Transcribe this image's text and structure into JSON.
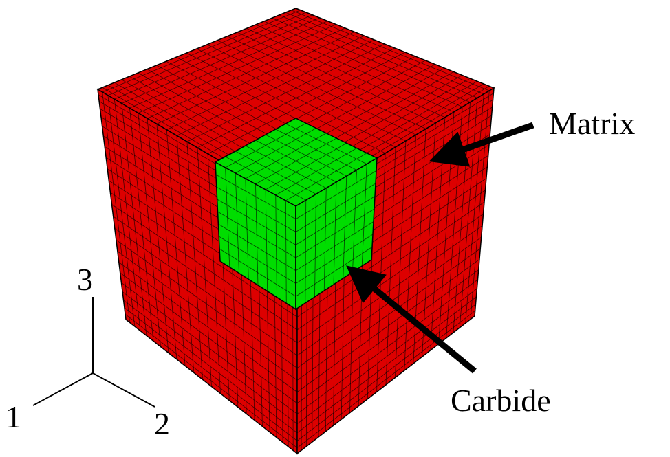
{
  "annotations": {
    "matrix": "Matrix",
    "carbide": "Carbide"
  },
  "triad": {
    "axis_1": "1",
    "axis_2": "2",
    "axis_3": "3"
  }
}
